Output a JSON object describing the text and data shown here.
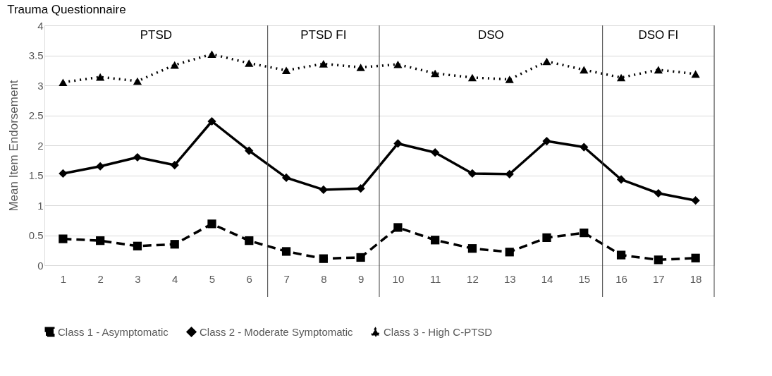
{
  "chart_data": {
    "type": "line",
    "title": "Trauma Questionnaire",
    "ylabel": "Mean Item Endorsement",
    "x": [
      1,
      2,
      3,
      4,
      5,
      6,
      7,
      8,
      9,
      10,
      11,
      12,
      13,
      14,
      15,
      16,
      17,
      18
    ],
    "series": [
      {
        "name": "Class 1 - Asymptomatic",
        "color": "#000000",
        "marker": "square",
        "line_style": "dashed",
        "values": [
          0.44,
          0.41,
          0.32,
          0.35,
          0.69,
          0.41,
          0.23,
          0.11,
          0.13,
          0.63,
          0.42,
          0.28,
          0.22,
          0.46,
          0.54,
          0.17,
          0.09,
          0.12
        ]
      },
      {
        "name": "Class 2 - Moderate Symptomatic",
        "color": "#000000",
        "marker": "diamond",
        "line_style": "solid",
        "values": [
          1.53,
          1.65,
          1.8,
          1.67,
          2.4,
          1.91,
          1.46,
          1.26,
          1.28,
          2.03,
          1.88,
          1.53,
          1.52,
          2.07,
          1.97,
          1.43,
          1.2,
          1.08
        ]
      },
      {
        "name": "Class 3 - High C-PTSD",
        "color": "#000000",
        "marker": "triangle",
        "line_style": "dotted",
        "values": [
          3.05,
          3.14,
          3.07,
          3.34,
          3.52,
          3.37,
          3.25,
          3.36,
          3.3,
          3.35,
          3.2,
          3.13,
          3.1,
          3.4,
          3.26,
          3.13,
          3.26,
          3.19
        ]
      }
    ],
    "xlim": [
      0.5,
      18.5
    ],
    "xticks": [
      1,
      2,
      3,
      4,
      5,
      6,
      7,
      8,
      9,
      10,
      11,
      12,
      13,
      14,
      15,
      16,
      17,
      18
    ],
    "ylim": [
      0,
      4
    ],
    "yticks": [
      0,
      0.5,
      1,
      1.5,
      2,
      2.5,
      3,
      3.5,
      4
    ],
    "ref_lines": [
      {
        "axis": "x",
        "value": 6.5,
        "color": "#404040"
      },
      {
        "axis": "x",
        "value": 9.5,
        "color": "#404040"
      },
      {
        "axis": "x",
        "value": 15.5,
        "color": "#404040"
      },
      {
        "axis": "x",
        "value": 18.5,
        "color": "#404040"
      }
    ],
    "annotations": [
      "PTSD",
      "PTSD FI",
      "DSO",
      "DSO FI"
    ],
    "grid": "y",
    "legend": "bottom"
  }
}
